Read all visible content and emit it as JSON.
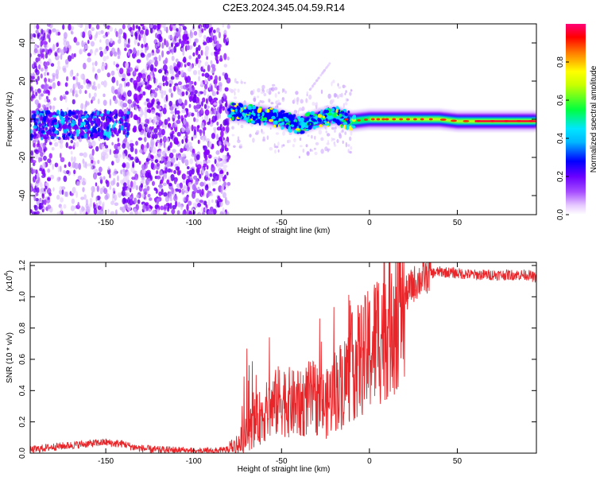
{
  "figure": {
    "title": "C2E3.2024.345.04.59.R14"
  },
  "chart_data": [
    {
      "type": "heatmap",
      "xlabel": "Height of straight line (km)",
      "ylabel": "Frequency (Hz)",
      "xlim": [
        -193,
        95
      ],
      "ylim": [
        -50,
        50
      ],
      "xticks": [
        -150,
        -100,
        -50,
        0,
        50
      ],
      "yticks": [
        -40,
        -20,
        0,
        20,
        40
      ],
      "xtick_labels": [
        "-150",
        "-100",
        "-50",
        "0",
        "50"
      ],
      "ytick_labels": [
        "-40",
        "-20",
        "0",
        "20",
        "40"
      ],
      "grid": false,
      "description": "Spectral amplitude vs height and frequency; diffuse purple speckle for heights below -80 km, bright blue-green-red ridge near 0 Hz from -80 km to 95 km",
      "ridge": {
        "x": [
          -190,
          -170,
          -150,
          -140,
          -80,
          -70,
          -60,
          -50,
          -40,
          -30,
          -20,
          -10,
          0,
          10,
          20,
          30,
          40,
          50,
          60,
          70,
          80,
          90,
          95
        ],
        "y": [
          -3,
          -3,
          -3,
          -3,
          4,
          3,
          2,
          0,
          -3,
          0,
          2,
          -1,
          0,
          0,
          0,
          0,
          0,
          -1,
          -1,
          -1,
          -1,
          -1,
          -1
        ]
      },
      "colorbar": {
        "label": "Normalized spectral amplitude",
        "range": [
          0,
          1
        ],
        "ticks": [
          0.0,
          0.2,
          0.4,
          0.6,
          0.8
        ],
        "tick_labels": [
          "0.0",
          "0.2",
          "0.4",
          "0.6",
          "0.8"
        ],
        "colors": [
          "#ffffff",
          "#8a00ff",
          "#0000ff",
          "#00e5ff",
          "#00ff00",
          "#ffff00",
          "#ff0000",
          "#ff0077"
        ]
      }
    },
    {
      "type": "line",
      "xlabel": "Height of straight line (km)",
      "ylabel": "SNR (10 * v/v)",
      "multiplier": "(x10",
      "multiplier_exp": "4",
      "xlim": [
        -193,
        95
      ],
      "ylim": [
        0,
        1.22
      ],
      "xticks": [
        -150,
        -100,
        -50,
        0,
        50
      ],
      "yticks": [
        0.0,
        0.2,
        0.4,
        0.6,
        0.8,
        1.0,
        1.2
      ],
      "xtick_labels": [
        "-150",
        "-100",
        "-50",
        "0",
        "50"
      ],
      "ytick_labels": [
        "0.0",
        "0.2",
        "0.4",
        "0.6",
        "0.8",
        "1.0",
        "1.2"
      ],
      "grid": false,
      "series": [
        {
          "color": "#e8262a",
          "x": [
            -193,
            -180,
            -170,
            -160,
            -150,
            -145,
            -140,
            -135,
            -130,
            -120,
            -110,
            -100,
            -90,
            -80,
            -75,
            -70,
            -65,
            -60,
            -55,
            -50,
            -45,
            -40,
            -35,
            -30,
            -25,
            -20,
            -15,
            -10,
            -5,
            0,
            5,
            10,
            15,
            20,
            25,
            30,
            35,
            40,
            50,
            60,
            70,
            80,
            90,
            95
          ],
          "y": [
            0.02,
            0.04,
            0.05,
            0.06,
            0.07,
            0.06,
            0.06,
            0.04,
            0.03,
            0.02,
            0.02,
            0.01,
            0.01,
            0.02,
            0.05,
            0.12,
            0.2,
            0.25,
            0.3,
            0.35,
            0.32,
            0.3,
            0.35,
            0.35,
            0.3,
            0.4,
            0.45,
            0.55,
            0.6,
            0.65,
            0.75,
            0.85,
            0.95,
            1.0,
            1.08,
            1.12,
            1.15,
            1.16,
            1.15,
            1.14,
            1.14,
            1.14,
            1.14,
            1.12
          ]
        }
      ]
    }
  ]
}
